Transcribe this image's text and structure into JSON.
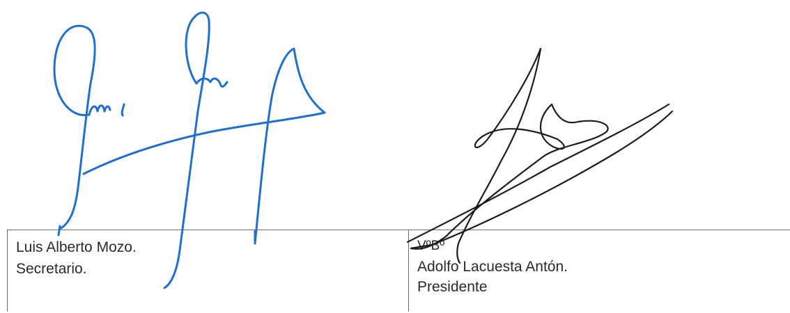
{
  "left_signer": {
    "name_line": "Luis Alberto Mozo.",
    "role_line": "Secretario."
  },
  "right_signer": {
    "approval_line": "VºBº",
    "name_line": "Adolfo Lacuesta Antón.",
    "role_line": "Presidente"
  },
  "colors": {
    "left_signature_ink": "#1f6fd0",
    "right_signature_ink": "#1b1b1b",
    "table_border": "#6f6f6f",
    "text": "#2a2a2a"
  }
}
